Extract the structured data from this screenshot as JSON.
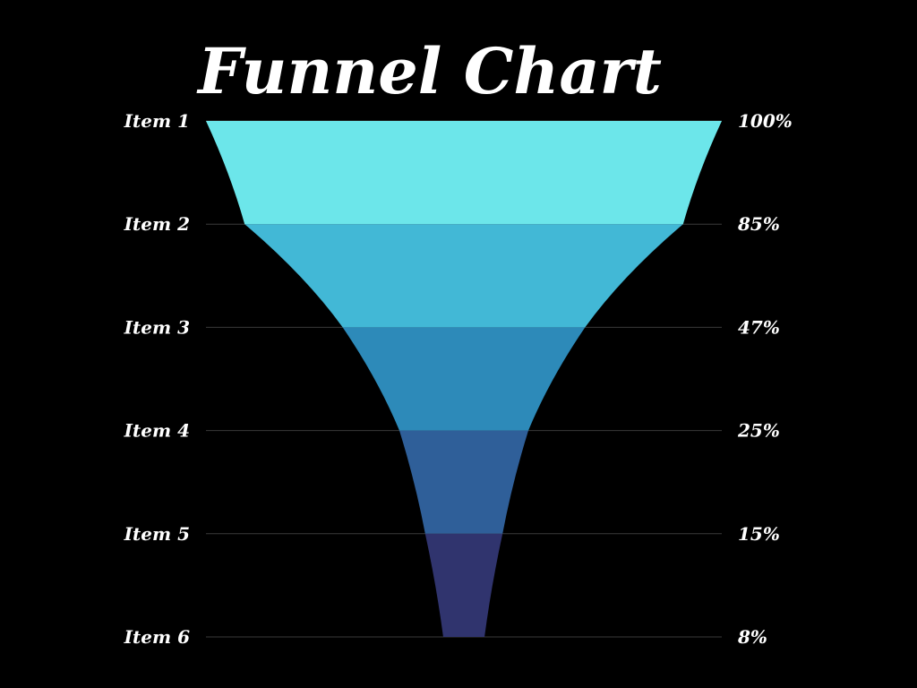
{
  "chart_data": {
    "type": "funnel",
    "title": "Funnel Chart",
    "categories": [
      "Item 1",
      "Item 2",
      "Item 3",
      "Item 4",
      "Item 5",
      "Item 6"
    ],
    "values": [
      100,
      85,
      47,
      25,
      15,
      8
    ],
    "value_labels": [
      "100%",
      "85%",
      "47%",
      "25%",
      "15%",
      "8%"
    ],
    "colors": [
      "#6ce6ea",
      "#42b8d6",
      "#2d8ab9",
      "#2f5f99",
      "#30346e"
    ],
    "background": "#000000",
    "grid": true
  }
}
